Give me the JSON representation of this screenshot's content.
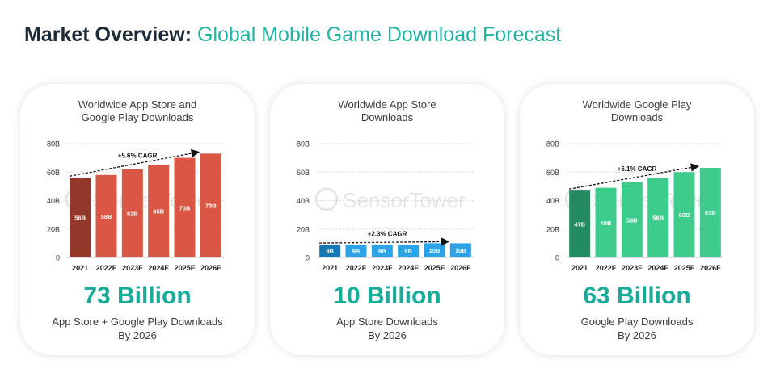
{
  "header": {
    "title_bold": "Market Overview:",
    "title_light": "Global Mobile Game Download Forecast"
  },
  "watermark": "SensorTower",
  "cards": [
    {
      "title_line1": "Worldwide App Store and",
      "title_line2": "Google Play Downloads",
      "big_value": "73 Billion",
      "sub_line1": "App Store + Google Play Downloads",
      "sub_line2": "By 2026"
    },
    {
      "title_line1": "Worldwide App Store",
      "title_line2": "Downloads",
      "big_value": "10 Billion",
      "sub_line1": "App Store Downloads",
      "sub_line2": "By 2026"
    },
    {
      "title_line1": "Worldwide Google Play",
      "title_line2": "Downloads",
      "big_value": "63 Billion",
      "sub_line1": "Google Play Downloads",
      "sub_line2": "By 2026"
    }
  ],
  "chart_data": [
    {
      "type": "bar",
      "categories": [
        "2021",
        "2022F",
        "2023F",
        "2024F",
        "2025F",
        "2026F"
      ],
      "values": [
        56,
        58,
        62,
        65,
        70,
        73
      ],
      "labels": [
        "56B",
        "58B",
        "62B",
        "65B",
        "70B",
        "73B"
      ],
      "yticks": [
        "0",
        "20B",
        "40B",
        "60B",
        "80B"
      ],
      "ylim": [
        0,
        80
      ],
      "annotation": "+5.6% CAGR",
      "colors": {
        "first": "#93372b",
        "rest": "#d95744"
      }
    },
    {
      "type": "bar",
      "categories": [
        "2021",
        "2022F",
        "2023F",
        "2024F",
        "2025F",
        "2026F"
      ],
      "values": [
        9,
        9,
        9,
        9,
        10,
        10
      ],
      "labels": [
        "9B",
        "9B",
        "9B",
        "9B",
        "10B",
        "10B"
      ],
      "yticks": [
        "0",
        "20B",
        "40B",
        "60B",
        "80B"
      ],
      "ylim": [
        0,
        80
      ],
      "annotation": "+2.3% CAGR",
      "colors": {
        "first": "#1677b3",
        "rest": "#2ba3e6"
      }
    },
    {
      "type": "bar",
      "categories": [
        "2021",
        "2022F",
        "2023F",
        "2024F",
        "2025F",
        "2026F"
      ],
      "values": [
        47,
        49,
        53,
        56,
        60,
        63
      ],
      "labels": [
        "47B",
        "49B",
        "53B",
        "56B",
        "60B",
        "63B"
      ],
      "yticks": [
        "0",
        "20B",
        "40B",
        "60B",
        "80B"
      ],
      "ylim": [
        0,
        80
      ],
      "annotation": "+6.1% CAGR",
      "colors": {
        "first": "#248a61",
        "rest": "#3dcc8c"
      }
    }
  ]
}
